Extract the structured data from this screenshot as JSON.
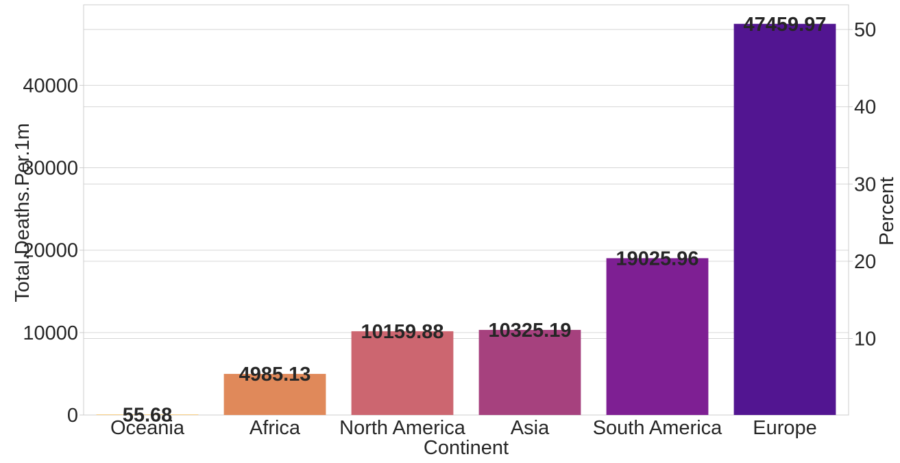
{
  "chart_data": {
    "type": "bar",
    "xlabel": "Continent",
    "ylabel": "Total.Deaths.Per.1m",
    "y2label": "Percent",
    "categories": [
      "Oceania",
      "Africa",
      "North America",
      "Asia",
      "South America",
      "Europe"
    ],
    "values": [
      55.68,
      4985.13,
      10159.88,
      10325.19,
      19025.96,
      47459.97
    ],
    "value_labels": [
      "55.68",
      "4985.13",
      "10159.88",
      "10325.19",
      "19025.96",
      "47459.97"
    ],
    "colors": [
      "#f8b94a",
      "#e0895a",
      "#cc6670",
      "#a6417e",
      "#7e1f93",
      "#521591"
    ],
    "ylim": [
      0,
      49770
    ],
    "yticks": [
      0,
      10000,
      20000,
      30000,
      40000
    ],
    "ytick_labels": [
      "0",
      "10000",
      "20000",
      "30000",
      "40000"
    ],
    "y2lim": [
      0.1,
      53.2
    ],
    "y2ticks": [
      10,
      20,
      30,
      40,
      50
    ],
    "y2tick_labels": [
      "10",
      "20",
      "30",
      "40",
      "50"
    ],
    "grid": true,
    "legend": false
  }
}
